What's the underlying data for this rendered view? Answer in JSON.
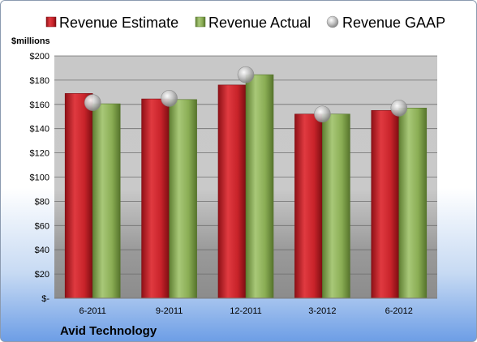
{
  "chart_data": {
    "type": "bar",
    "ylabel": "$millions",
    "footer": "Avid Technology",
    "categories": [
      "6-2011",
      "9-2011",
      "12-2011",
      "3-2012",
      "6-2012"
    ],
    "ylim": [
      0,
      200
    ],
    "yticks": [
      0,
      20,
      40,
      60,
      80,
      100,
      120,
      140,
      160,
      180,
      200
    ],
    "ytick_labels": [
      "$-",
      "$20",
      "$40",
      "$60",
      "$80",
      "$100",
      "$120",
      "$140",
      "$160",
      "$180",
      "$200"
    ],
    "grid": true,
    "legend_position": "top",
    "series": [
      {
        "name": "Revenue Estimate",
        "kind": "bar",
        "color": "#c8232a",
        "values": [
          169,
          164.5,
          176,
          152,
          155
        ]
      },
      {
        "name": "Revenue Actual",
        "kind": "bar",
        "color": "#8aad54",
        "values": [
          160.5,
          164,
          184.5,
          152,
          157
        ]
      },
      {
        "name": "Revenue GAAP",
        "kind": "marker",
        "color": "#b8b8b8",
        "values": [
          161.5,
          165,
          184.5,
          152,
          157
        ]
      }
    ]
  }
}
